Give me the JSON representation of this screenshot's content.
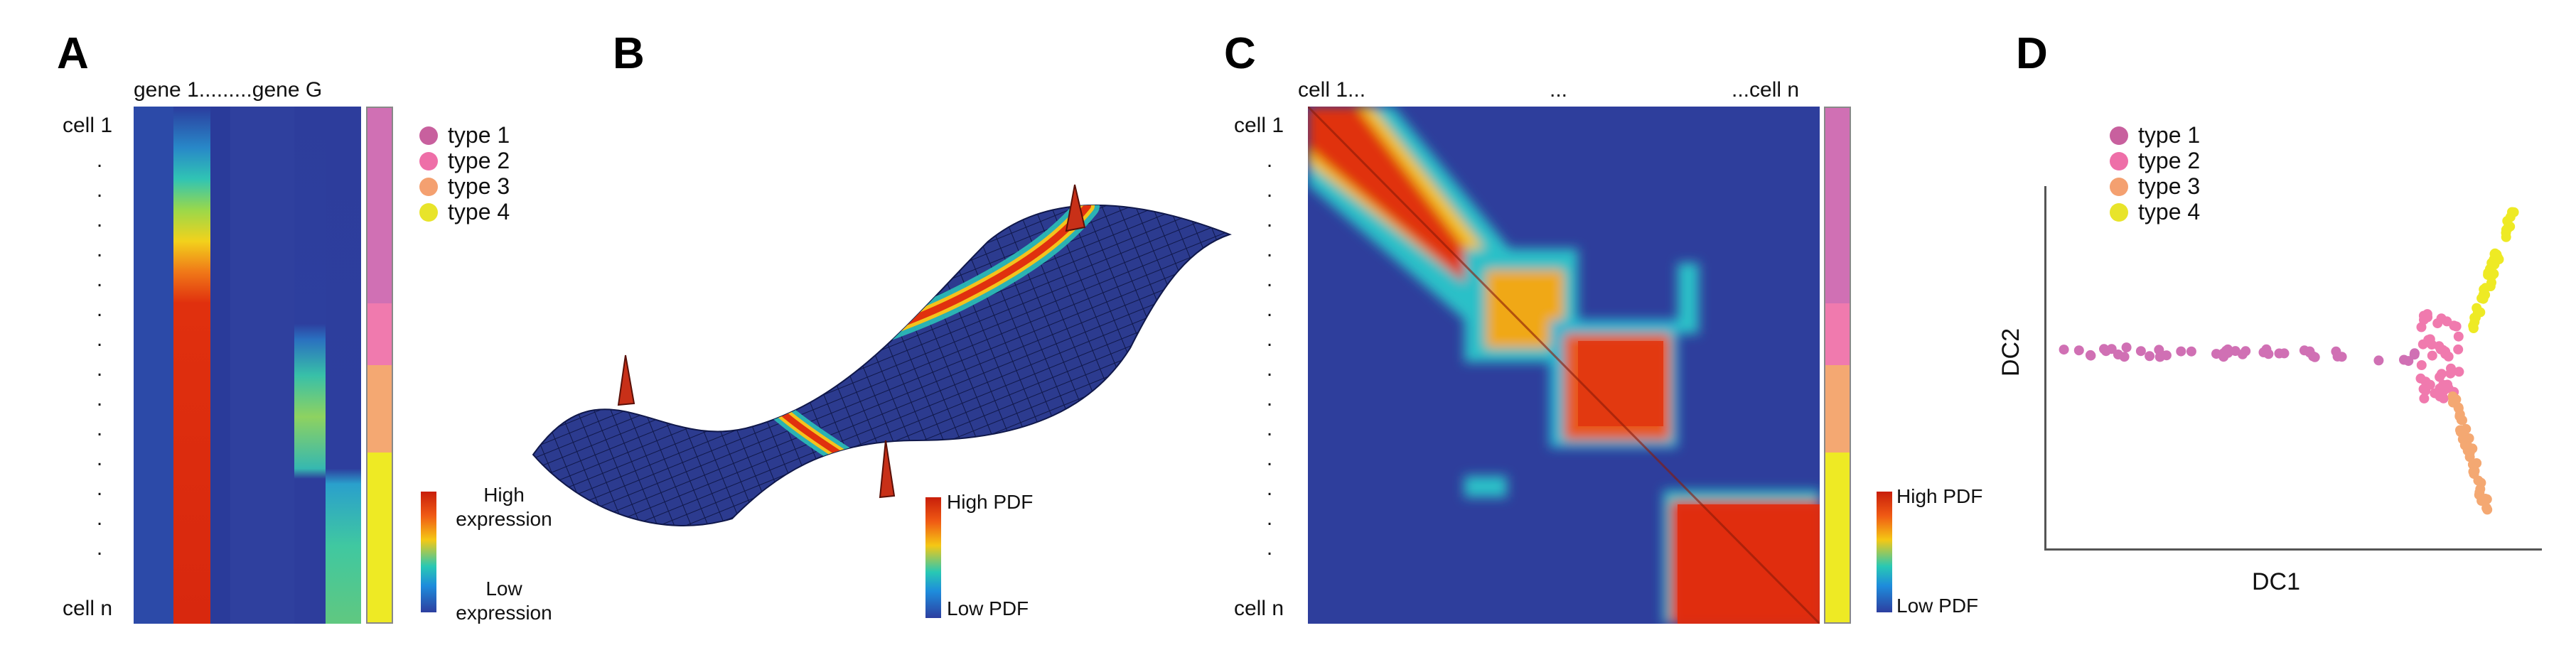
{
  "panels": {
    "A": {
      "letter": "A",
      "column_header": "gene 1.........gene G",
      "row_top": "cell 1",
      "row_bottom": "cell n",
      "legend": [
        {
          "label": "type 1",
          "color": "#c8609e"
        },
        {
          "label": "type 2",
          "color": "#ee6fa8"
        },
        {
          "label": "type 3",
          "color": "#f4a070"
        },
        {
          "label": "type 4",
          "color": "#e8e42a"
        }
      ],
      "colorbar_high": "High\nexpression",
      "colorbar_low": "Low\nexpression"
    },
    "B": {
      "letter": "B",
      "colorbar_high": "High PDF",
      "colorbar_low": "Low PDF"
    },
    "C": {
      "letter": "C",
      "col_first": "cell 1...",
      "col_mid": "...",
      "col_last": "...cell n",
      "row_top": "cell 1",
      "row_bottom": "cell n",
      "colorbar_high": "High PDF",
      "colorbar_low": "Low PDF"
    },
    "D": {
      "letter": "D",
      "xlabel": "DC1",
      "ylabel": "DC2",
      "legend": [
        {
          "label": "type 1",
          "color": "#c8609e"
        },
        {
          "label": "type 2",
          "color": "#ee6fa8"
        },
        {
          "label": "type 3",
          "color": "#f4a070"
        },
        {
          "label": "type 4",
          "color": "#e8e42a"
        }
      ]
    }
  },
  "type_colors": {
    "type1": "#d070b4",
    "type2": "#f07aae",
    "type3": "#f4a872",
    "type4": "#eeea24"
  },
  "heat_colors": {
    "low": "#2d3d9c",
    "mid": "#2cc0c0",
    "high": "#e02810"
  }
}
